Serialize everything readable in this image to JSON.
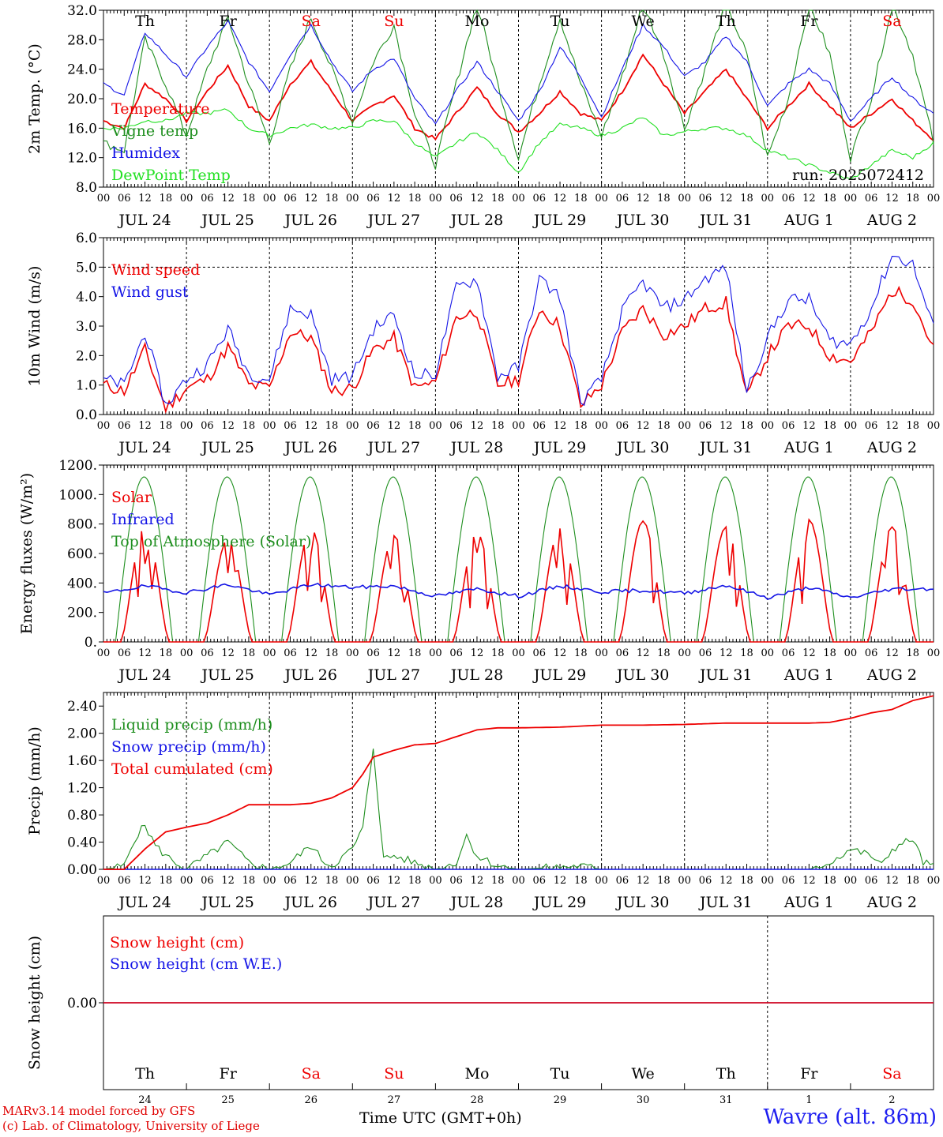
{
  "footer": {
    "model_line": "MARv3.14 model forced by GFS",
    "credit_line": "(c) Lab. of Climatology, University of Liege",
    "station": "Wavre (alt. 86m)",
    "time_label": "Time UTC (GMT+0h)"
  },
  "days": {
    "weekday_labels": [
      "Th",
      "Fr",
      "Sa",
      "Su",
      "Mo",
      "Tu",
      "We",
      "Th",
      "Fr",
      "Sa"
    ],
    "weekend_flags": [
      false,
      false,
      true,
      true,
      false,
      false,
      false,
      false,
      false,
      true
    ],
    "date_labels": [
      "JUL 24",
      "JUL 25",
      "JUL 26",
      "JUL 27",
      "JUL 28",
      "JUL 29",
      "JUL 30",
      "JUL 31",
      "AUG  1",
      "AUG  2"
    ],
    "day_numbers": [
      "24",
      "25",
      "26",
      "27",
      "28",
      "29",
      "30",
      "31",
      "1",
      "2"
    ],
    "hour_labels": [
      "00",
      "06",
      "12",
      "18"
    ],
    "final_hour_label": "00"
  },
  "colors": {
    "red": "#ee0000",
    "green": "#1f8f1f",
    "blue": "#1414e6",
    "light_green": "#22e022",
    "weekend": "#ee0000"
  },
  "chart_data": [
    {
      "type": "line",
      "ylabel": "2m Temp. (°C)",
      "ylim": [
        8,
        32
      ],
      "yticks": [
        "8.0",
        "12.0",
        "16.0",
        "20.0",
        "24.0",
        "28.0",
        "32.0"
      ],
      "annotation": "run: 2025072412",
      "x_unit": "hours since JUL 24 00 UTC",
      "series": [
        {
          "name": "Temperature",
          "color_key": "red",
          "x": [
            0,
            6,
            12,
            18,
            24,
            30,
            36,
            42,
            48,
            54,
            60,
            66,
            72,
            78,
            84,
            90,
            96,
            102,
            108,
            114,
            120,
            126,
            132,
            138,
            144,
            150,
            156,
            162,
            168,
            174,
            180,
            186,
            192,
            198,
            204,
            210,
            216,
            222,
            228,
            234,
            240
          ],
          "values": [
            17,
            16,
            22,
            20,
            17,
            21,
            24.5,
            19,
            17,
            22,
            25,
            21,
            17,
            19,
            20.5,
            16,
            14.5,
            18,
            21.5,
            18,
            15.5,
            18,
            21,
            18,
            17,
            21,
            26,
            22,
            18,
            21,
            24,
            20,
            16,
            19,
            22,
            19,
            16,
            18,
            20,
            17,
            14.5
          ]
        },
        {
          "name": "Vigne temp",
          "color_key": "green",
          "x": [
            0,
            6,
            12,
            18,
            24,
            30,
            36,
            42,
            48,
            54,
            60,
            66,
            72,
            78,
            84,
            90,
            96,
            102,
            108,
            114,
            120,
            126,
            132,
            138,
            144,
            150,
            156,
            162,
            168,
            174,
            180,
            186,
            192,
            198,
            204,
            210,
            216,
            222,
            228,
            234,
            240
          ],
          "values": [
            14,
            13,
            28,
            22,
            15,
            24,
            31,
            22,
            14,
            24,
            31,
            24,
            17,
            25,
            30,
            18,
            11,
            22,
            33,
            22,
            12,
            22,
            31,
            22,
            15,
            23,
            33,
            26,
            16,
            24,
            33,
            26,
            12,
            20,
            33,
            26,
            12,
            20,
            33,
            26,
            14
          ]
        },
        {
          "name": "Humidex",
          "color_key": "blue",
          "x": [
            0,
            6,
            12,
            18,
            24,
            30,
            36,
            42,
            48,
            54,
            60,
            66,
            72,
            78,
            84,
            90,
            96,
            102,
            108,
            114,
            120,
            126,
            132,
            138,
            144,
            150,
            156,
            162,
            168,
            174,
            180,
            186,
            192,
            198,
            204,
            210,
            216,
            222,
            228,
            234,
            240
          ],
          "values": [
            22,
            20.5,
            29,
            26,
            23,
            27,
            30.5,
            25,
            21,
            26,
            30,
            25,
            21,
            24,
            25.5,
            20,
            16.5,
            21,
            25,
            21,
            17,
            21,
            27,
            23,
            17.5,
            24,
            30,
            27,
            23,
            25,
            28.5,
            25,
            19,
            22,
            24,
            22,
            17,
            20,
            23,
            20,
            18
          ]
        },
        {
          "name": "DewPoint Temp",
          "color_key": "light_green",
          "x": [
            0,
            6,
            12,
            18,
            24,
            30,
            36,
            42,
            48,
            54,
            60,
            66,
            72,
            78,
            84,
            90,
            96,
            102,
            108,
            114,
            120,
            126,
            132,
            138,
            144,
            150,
            156,
            162,
            168,
            174,
            180,
            186,
            192,
            198,
            204,
            210,
            216,
            222,
            228,
            234,
            240
          ],
          "values": [
            16,
            16,
            17,
            17,
            18,
            18,
            18.5,
            16,
            15,
            16,
            16.5,
            16,
            16,
            17,
            17,
            14,
            12,
            14,
            15.5,
            13,
            10,
            14,
            16.5,
            16,
            15,
            16,
            17.5,
            15,
            15.5,
            16,
            16,
            15,
            13,
            12,
            11,
            10,
            9,
            11,
            13,
            12,
            14
          ]
        }
      ]
    },
    {
      "type": "line",
      "ylabel": "10m Wind (m/s)",
      "ylim": [
        0,
        6
      ],
      "yticks": [
        "0.0",
        "1.0",
        "2.0",
        "3.0",
        "4.0",
        "5.0",
        "6.0"
      ],
      "reference_line": 5.0,
      "x_unit": "hours since JUL 24 00 UTC",
      "series": [
        {
          "name": "Wind speed",
          "color_key": "red",
          "x": [
            0,
            6,
            12,
            18,
            24,
            30,
            36,
            42,
            48,
            54,
            60,
            66,
            72,
            78,
            84,
            90,
            96,
            102,
            108,
            114,
            120,
            126,
            132,
            138,
            144,
            150,
            156,
            162,
            168,
            174,
            180,
            186,
            192,
            198,
            204,
            210,
            216,
            222,
            228,
            234,
            240
          ],
          "values": [
            1.0,
            0.8,
            2.2,
            0.2,
            0.9,
            1.2,
            2.3,
            1.0,
            0.9,
            2.8,
            2.6,
            0.8,
            0.9,
            2.2,
            2.6,
            0.9,
            1.1,
            3.3,
            3.5,
            1.0,
            1.2,
            3.6,
            3.0,
            0.3,
            1.0,
            2.8,
            3.6,
            2.7,
            3.0,
            3.6,
            3.8,
            0.6,
            2.0,
            3.0,
            3.0,
            2.0,
            1.8,
            2.8,
            4.2,
            3.9,
            2.2
          ]
        },
        {
          "name": "Wind gust",
          "color_key": "blue",
          "x": [
            0,
            6,
            12,
            18,
            24,
            30,
            36,
            42,
            48,
            54,
            60,
            66,
            72,
            78,
            84,
            90,
            96,
            102,
            108,
            114,
            120,
            126,
            132,
            138,
            144,
            150,
            156,
            162,
            168,
            174,
            180,
            186,
            192,
            198,
            204,
            210,
            216,
            222,
            228,
            234,
            240
          ],
          "values": [
            1.2,
            1.0,
            2.8,
            0.3,
            1.2,
            1.7,
            2.9,
            1.4,
            1.2,
            3.6,
            3.4,
            1.2,
            1.3,
            2.9,
            3.4,
            1.3,
            1.4,
            4.3,
            4.6,
            1.3,
            1.6,
            4.6,
            4.0,
            0.4,
            1.2,
            3.5,
            4.5,
            3.6,
            3.9,
            4.6,
            5.0,
            0.8,
            2.6,
            3.9,
            3.9,
            2.5,
            2.4,
            3.6,
            5.4,
            5.1,
            2.9
          ]
        }
      ]
    },
    {
      "type": "line",
      "ylabel": "Energy fluxes (W/m²)",
      "ylim": [
        0,
        1200
      ],
      "yticks": [
        "0.",
        "200.",
        "400.",
        "600.",
        "800.",
        "1000.",
        "1200."
      ],
      "x_unit": "hours since JUL 24 00 UTC",
      "series": [
        {
          "name": "Solar",
          "color_key": "red",
          "peak_by_day": [
            780,
            700,
            770,
            720,
            740,
            770,
            820,
            780,
            830,
            780
          ]
        },
        {
          "name": "Infrared",
          "color_key": "blue",
          "x": [
            0,
            12,
            24,
            36,
            48,
            60,
            72,
            84,
            96,
            108,
            120,
            132,
            144,
            156,
            168,
            180,
            192,
            204,
            216,
            228,
            240
          ],
          "values": [
            330,
            380,
            335,
            390,
            320,
            390,
            370,
            380,
            310,
            360,
            310,
            380,
            340,
            350,
            330,
            385,
            300,
            370,
            300,
            360,
            360
          ]
        },
        {
          "name": "Top of Atmosphere (Solar)",
          "color_key": "green",
          "peak": 1120
        }
      ]
    },
    {
      "type": "line",
      "ylabel": "Precip (mm/h)",
      "ylim": [
        0,
        2.6
      ],
      "yticks": [
        "0.00",
        "0.40",
        "0.80",
        "1.20",
        "1.60",
        "2.00",
        "2.40"
      ],
      "x_unit": "hours since JUL 24 00 UTC",
      "series": [
        {
          "name": "Liquid precip (mm/h)",
          "color_key": "green",
          "x": [
            0,
            6,
            9,
            12,
            15,
            18,
            21,
            24,
            30,
            36,
            42,
            48,
            54,
            60,
            63,
            66,
            72,
            75,
            78,
            81,
            84,
            90,
            96,
            102,
            105,
            108,
            114,
            120,
            138,
            144,
            180,
            204,
            210,
            216,
            222,
            225,
            228,
            234,
            237,
            240
          ],
          "values": [
            0,
            0.05,
            0.45,
            0.65,
            0.35,
            0.2,
            0.1,
            0,
            0.2,
            0.4,
            0.1,
            0,
            0.1,
            0.35,
            0.15,
            0.05,
            0.3,
            0.6,
            1.8,
            0.15,
            0.2,
            0.1,
            0,
            0.1,
            0.5,
            0.2,
            0.05,
            0,
            0.05,
            0,
            0,
            0,
            0.1,
            0.3,
            0.2,
            0.05,
            0.3,
            0.45,
            0.1,
            0.05
          ]
        },
        {
          "name": "Snow precip (mm/h)",
          "color_key": "blue",
          "x": [
            0,
            240
          ],
          "values": [
            0,
            0
          ]
        },
        {
          "name": "Total cumulated (cm)",
          "color_key": "red",
          "x": [
            0,
            6,
            12,
            18,
            24,
            30,
            36,
            42,
            48,
            54,
            60,
            66,
            72,
            75,
            78,
            84,
            90,
            96,
            102,
            108,
            114,
            120,
            132,
            144,
            156,
            168,
            180,
            192,
            204,
            210,
            216,
            222,
            228,
            234,
            240
          ],
          "values": [
            0,
            0,
            0.3,
            0.55,
            0.62,
            0.68,
            0.8,
            0.95,
            0.95,
            0.95,
            0.97,
            1.05,
            1.2,
            1.4,
            1.65,
            1.75,
            1.83,
            1.85,
            1.95,
            2.05,
            2.08,
            2.08,
            2.09,
            2.12,
            2.12,
            2.13,
            2.15,
            2.15,
            2.15,
            2.16,
            2.22,
            2.3,
            2.35,
            2.48,
            2.55
          ]
        }
      ]
    },
    {
      "type": "line",
      "ylabel": "Snow height (cm)",
      "ytick": "0.00",
      "x_unit": "hours since JUL 24 00 UTC",
      "series": [
        {
          "name": "Snow height (cm)",
          "color_key": "red",
          "x": [
            0,
            240
          ],
          "values": [
            0,
            0
          ]
        },
        {
          "name": "Snow height (cm W.E.)",
          "color_key": "blue",
          "x": [
            0,
            240
          ],
          "values": [
            0,
            0
          ]
        }
      ]
    }
  ]
}
